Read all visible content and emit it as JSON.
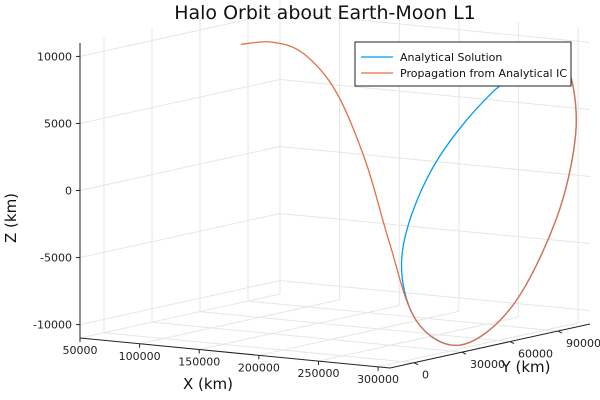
{
  "chart_data": {
    "type": "line",
    "projection": "3d",
    "title": "Halo Orbit about Earth-Moon L1",
    "xlabel": "X (km)",
    "ylabel": "Y (km)",
    "zlabel": "Z (km)",
    "xlim": [
      50000,
      310000
    ],
    "ylim": [
      -15000,
      110000
    ],
    "zlim": [
      -11000,
      11000
    ],
    "x_ticks": [
      50000,
      100000,
      150000,
      200000,
      250000,
      300000
    ],
    "y_ticks": [
      0,
      30000,
      60000,
      90000
    ],
    "z_ticks": [
      -10000,
      -5000,
      0,
      5000,
      10000
    ],
    "grid": true,
    "legend_position": "top-right",
    "series": [
      {
        "name": "Analytical Solution",
        "color": "#009af9",
        "points": [
          {
            "x": 325000,
            "y": 75000,
            "z": 10300
          },
          {
            "x": 315000,
            "y": 45000,
            "z": 8000
          },
          {
            "x": 305000,
            "y": 15000,
            "z": 3000
          },
          {
            "x": 300000,
            "y": 0,
            "z": -3000
          },
          {
            "x": 305000,
            "y": 5000,
            "z": -8000
          },
          {
            "x": 315000,
            "y": 25000,
            "z": -10300
          },
          {
            "x": 325000,
            "y": 50000,
            "z": -8000
          },
          {
            "x": 335000,
            "y": 70000,
            "z": -2000
          },
          {
            "x": 338000,
            "y": 80000,
            "z": 4000
          },
          {
            "x": 334000,
            "y": 80000,
            "z": 8500
          },
          {
            "x": 325000,
            "y": 75000,
            "z": 10300
          }
        ]
      },
      {
        "name": "Propagation from Analytical IC",
        "color": "#e26f46",
        "points": [
          {
            "x": 325000,
            "y": 75000,
            "z": 10300
          },
          {
            "x": 334000,
            "y": 80000,
            "z": 8500
          },
          {
            "x": 338000,
            "y": 80000,
            "z": 4000
          },
          {
            "x": 335000,
            "y": 70000,
            "z": -2000
          },
          {
            "x": 325000,
            "y": 50000,
            "z": -8000
          },
          {
            "x": 315000,
            "y": 25000,
            "z": -10300
          },
          {
            "x": 305000,
            "y": 5000,
            "z": -8000
          },
          {
            "x": 296000,
            "y": -5000,
            "z": -2000
          },
          {
            "x": 280000,
            "y": -8000,
            "z": 4000
          },
          {
            "x": 255000,
            "y": -8000,
            "z": 9000
          },
          {
            "x": 225000,
            "y": -6000,
            "z": 11500
          },
          {
            "x": 195000,
            "y": -3000,
            "z": 12000
          },
          {
            "x": 165000,
            "y": 0,
            "z": 11500
          }
        ]
      }
    ]
  }
}
